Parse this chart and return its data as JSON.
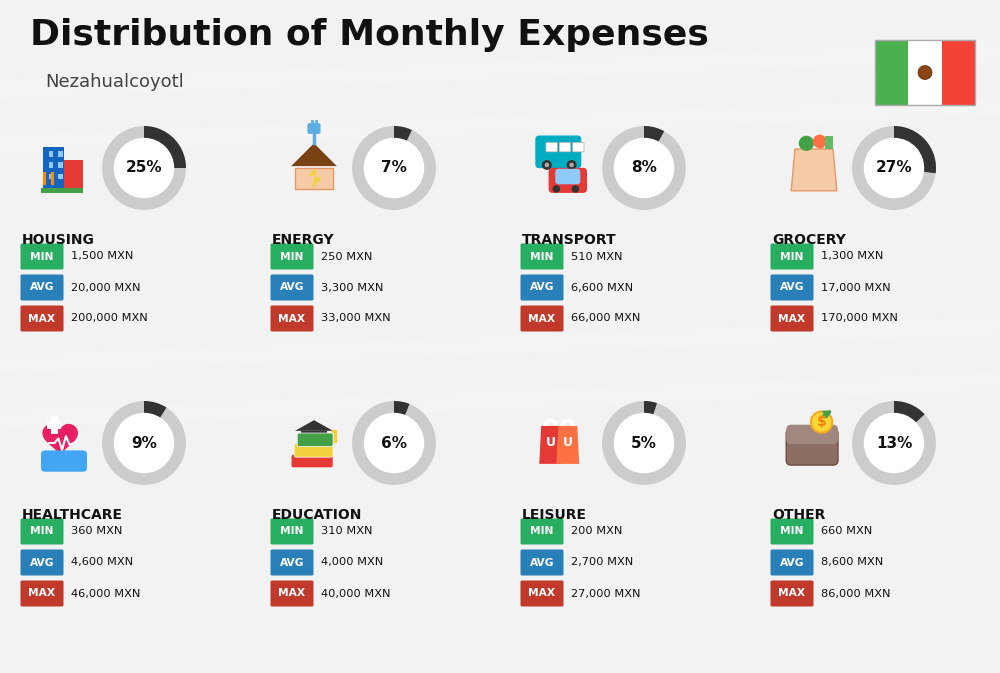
{
  "title": "Distribution of Monthly Expenses",
  "subtitle": "Nezahualcoyotl",
  "bg_color": "#f2f2f2",
  "categories": [
    {
      "name": "HOUSING",
      "pct": 25,
      "min": "1,500 MXN",
      "avg": "20,000 MXN",
      "max": "200,000 MXN",
      "row": 0,
      "col": 0
    },
    {
      "name": "ENERGY",
      "pct": 7,
      "min": "250 MXN",
      "avg": "3,300 MXN",
      "max": "33,000 MXN",
      "row": 0,
      "col": 1
    },
    {
      "name": "TRANSPORT",
      "pct": 8,
      "min": "510 MXN",
      "avg": "6,600 MXN",
      "max": "66,000 MXN",
      "row": 0,
      "col": 2
    },
    {
      "name": "GROCERY",
      "pct": 27,
      "min": "1,300 MXN",
      "avg": "17,000 MXN",
      "max": "170,000 MXN",
      "row": 0,
      "col": 3
    },
    {
      "name": "HEALTHCARE",
      "pct": 9,
      "min": "360 MXN",
      "avg": "4,600 MXN",
      "max": "46,000 MXN",
      "row": 1,
      "col": 0
    },
    {
      "name": "EDUCATION",
      "pct": 6,
      "min": "310 MXN",
      "avg": "4,000 MXN",
      "max": "40,000 MXN",
      "row": 1,
      "col": 1
    },
    {
      "name": "LEISURE",
      "pct": 5,
      "min": "200 MXN",
      "avg": "2,700 MXN",
      "max": "27,000 MXN",
      "row": 1,
      "col": 2
    },
    {
      "name": "OTHER",
      "pct": 13,
      "min": "660 MXN",
      "avg": "8,600 MXN",
      "max": "86,000 MXN",
      "row": 1,
      "col": 3
    }
  ],
  "color_min": "#27ae60",
  "color_avg": "#2980b9",
  "color_max": "#c0392b",
  "arc_dark": "#333333",
  "arc_light": "#cccccc",
  "arc_white": "#ffffff",
  "flag_green": "#4caf50",
  "flag_white": "#ffffff",
  "flag_red": "#f44336"
}
